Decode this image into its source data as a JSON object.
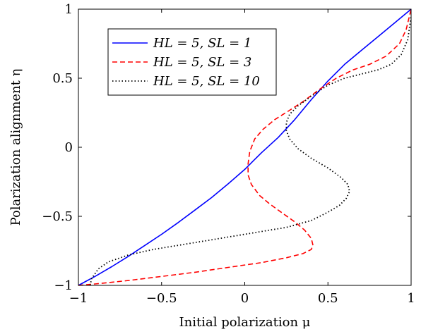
{
  "chart_data": {
    "type": "line",
    "title": "",
    "xlabel": "Initial polarization μ",
    "ylabel": "Polarization alignment η",
    "xlim": [
      -1,
      1
    ],
    "ylim": [
      -1,
      1
    ],
    "xticks": [
      -1,
      -0.5,
      0,
      0.5,
      1
    ],
    "yticks": [
      -1,
      -0.5,
      0,
      0.5,
      1
    ],
    "xtick_labels": [
      "−1",
      "−0.5",
      "0",
      "0.5",
      "1"
    ],
    "ytick_labels": [
      "−1",
      "−0.5",
      "0",
      "0.5",
      "1"
    ],
    "grid": false,
    "legend_position": "top-left",
    "series": [
      {
        "name": "HL = 5, SL = 1",
        "color": "#0000ff",
        "style": "solid",
        "points": [
          [
            -1.0,
            -1.0
          ],
          [
            -0.9,
            -0.935
          ],
          [
            -0.8,
            -0.865
          ],
          [
            -0.7,
            -0.79
          ],
          [
            -0.6,
            -0.71
          ],
          [
            -0.5,
            -0.63
          ],
          [
            -0.4,
            -0.545
          ],
          [
            -0.3,
            -0.455
          ],
          [
            -0.2,
            -0.365
          ],
          [
            -0.1,
            -0.265
          ],
          [
            0.0,
            -0.16
          ],
          [
            0.05,
            -0.1
          ],
          [
            0.1,
            -0.04
          ],
          [
            0.2,
            0.07
          ],
          [
            0.3,
            0.2
          ],
          [
            0.4,
            0.345
          ],
          [
            0.5,
            0.48
          ],
          [
            0.6,
            0.6
          ],
          [
            0.7,
            0.7
          ],
          [
            0.8,
            0.8
          ],
          [
            0.9,
            0.9
          ],
          [
            1.0,
            1.0
          ]
        ]
      },
      {
        "name": "HL = 5, SL = 3",
        "color": "#ff0000",
        "style": "dashed",
        "points": [
          [
            -1.0,
            -1.0
          ],
          [
            -0.9,
            -0.99
          ],
          [
            -0.7,
            -0.965
          ],
          [
            -0.5,
            -0.935
          ],
          [
            -0.3,
            -0.905
          ],
          [
            -0.1,
            -0.87
          ],
          [
            0.1,
            -0.835
          ],
          [
            0.25,
            -0.8
          ],
          [
            0.35,
            -0.77
          ],
          [
            0.4,
            -0.74
          ],
          [
            0.41,
            -0.71
          ],
          [
            0.4,
            -0.66
          ],
          [
            0.36,
            -0.6
          ],
          [
            0.3,
            -0.54
          ],
          [
            0.23,
            -0.48
          ],
          [
            0.15,
            -0.41
          ],
          [
            0.09,
            -0.35
          ],
          [
            0.04,
            -0.27
          ],
          [
            0.02,
            -0.2
          ],
          [
            0.02,
            -0.12
          ],
          [
            0.03,
            -0.03
          ],
          [
            0.06,
            0.06
          ],
          [
            0.11,
            0.13
          ],
          [
            0.18,
            0.2
          ],
          [
            0.26,
            0.26
          ],
          [
            0.35,
            0.33
          ],
          [
            0.45,
            0.42
          ],
          [
            0.55,
            0.5
          ],
          [
            0.65,
            0.56
          ],
          [
            0.75,
            0.6
          ],
          [
            0.85,
            0.66
          ],
          [
            0.93,
            0.75
          ],
          [
            0.97,
            0.85
          ],
          [
            1.0,
            1.0
          ]
        ]
      },
      {
        "name": "HL = 5, SL = 10",
        "color": "#000000",
        "style": "dotted",
        "points": [
          [
            -0.93,
            -1.0
          ],
          [
            -0.92,
            -0.95
          ],
          [
            -0.88,
            -0.88
          ],
          [
            -0.82,
            -0.83
          ],
          [
            -0.7,
            -0.78
          ],
          [
            -0.55,
            -0.74
          ],
          [
            -0.35,
            -0.7
          ],
          [
            -0.15,
            -0.66
          ],
          [
            0.05,
            -0.62
          ],
          [
            0.25,
            -0.58
          ],
          [
            0.4,
            -0.53
          ],
          [
            0.5,
            -0.47
          ],
          [
            0.57,
            -0.42
          ],
          [
            0.61,
            -0.37
          ],
          [
            0.63,
            -0.32
          ],
          [
            0.62,
            -0.27
          ],
          [
            0.58,
            -0.22
          ],
          [
            0.5,
            -0.15
          ],
          [
            0.4,
            -0.08
          ],
          [
            0.32,
            -0.01
          ],
          [
            0.27,
            0.06
          ],
          [
            0.25,
            0.12
          ],
          [
            0.25,
            0.18
          ],
          [
            0.27,
            0.24
          ],
          [
            0.32,
            0.3
          ],
          [
            0.4,
            0.37
          ],
          [
            0.5,
            0.45
          ],
          [
            0.6,
            0.5
          ],
          [
            0.7,
            0.53
          ],
          [
            0.8,
            0.56
          ],
          [
            0.88,
            0.6
          ],
          [
            0.94,
            0.67
          ],
          [
            0.98,
            0.78
          ],
          [
            1.0,
            0.95
          ]
        ]
      }
    ]
  }
}
